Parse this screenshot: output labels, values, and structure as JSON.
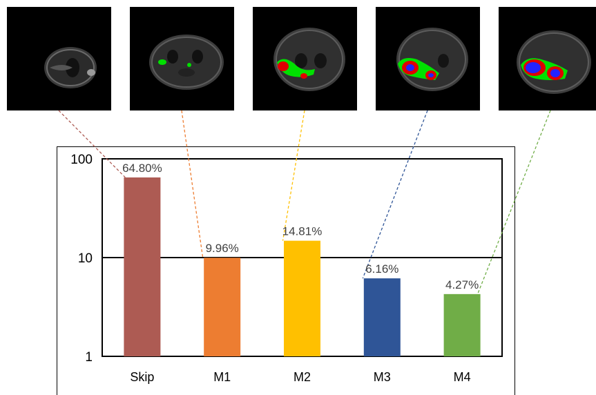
{
  "chart_data": {
    "type": "bar",
    "scale": "log",
    "categories": [
      "Skip",
      "M1",
      "M2",
      "M3",
      "M4"
    ],
    "values": [
      64.8,
      9.96,
      14.81,
      6.16,
      4.27
    ],
    "value_labels": [
      "64.80%",
      "9.96%",
      "14.81%",
      "6.16%",
      "4.27%"
    ],
    "ylim": [
      1,
      100
    ],
    "ytick_values": [
      1,
      10,
      100
    ],
    "yticks": [
      "1",
      "10",
      "100"
    ],
    "grid": true,
    "title": "",
    "xlabel": "",
    "ylabel": "",
    "colors": [
      "#ad5b53",
      "#ed7d31",
      "#ffc000",
      "#2f5597",
      "#70ad47"
    ]
  },
  "thumbnails": [
    {
      "icon": "brain-mri-slice",
      "segmentation": "none"
    },
    {
      "icon": "brain-mri-slice",
      "segmentation": "small-green"
    },
    {
      "icon": "brain-mri-slice",
      "segmentation": "green-red"
    },
    {
      "icon": "brain-mri-slice",
      "segmentation": "green-red-blue"
    },
    {
      "icon": "brain-mri-slice",
      "segmentation": "large-green-red-blue"
    }
  ]
}
